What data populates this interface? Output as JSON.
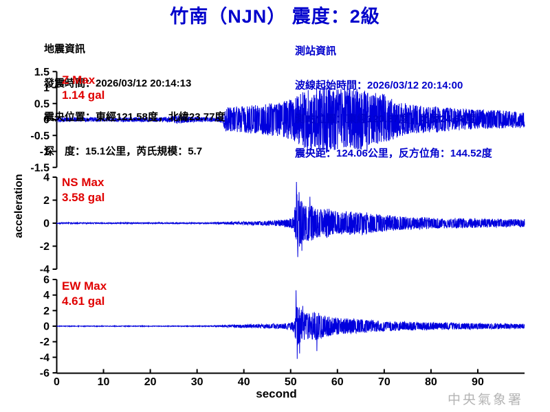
{
  "title": "竹南（NJN） 震度：2級",
  "earthquake_info": {
    "heading": "地震資訊",
    "origin_time_line": "發震時間：2026/03/12 20:14:13",
    "epicenter_line": "震央位置：東經121.58度，北緯23.77度",
    "depth_magnitude_line": "深　度：15.1公里，芮氏規模：5.7"
  },
  "station_info": {
    "heading": "測站資訊",
    "wave_start_line": "波線起始時間：2026/03/12 20:14:00",
    "station_location_line": "測站位置：東經120.87度，北緯24.68度",
    "distance_azimuth_line": "震央距：124.06公里，反方位角：144.52度"
  },
  "watermark": "中央氣象署",
  "colors": {
    "trace_blue": "#0000dd",
    "text_blue": "#0000cc",
    "label_red": "#e00000",
    "axis_black": "#000000",
    "watermark_gray": "#b4b4b4"
  },
  "chart_data": {
    "type": "line",
    "title": "竹南（NJN） 震度：2級",
    "xlabel": "second",
    "ylabel": "acceleration",
    "x_range": [
      0,
      100
    ],
    "x_ticks": [
      0,
      10,
      20,
      30,
      40,
      50,
      60,
      70,
      80,
      90
    ],
    "grid": false,
    "panels": [
      {
        "name": "Z",
        "max_label": "Z Max",
        "max_value_label": "1.14 gal",
        "max_gal": 1.14,
        "ylim": [
          -1.5,
          1.5
        ],
        "y_ticks": [
          1.5,
          1,
          0.5,
          0,
          -0.5,
          -1,
          -1.5
        ],
        "seed": 101,
        "envelope": [
          [
            0,
            0.07
          ],
          [
            23,
            0.07
          ],
          [
            26,
            0.14
          ],
          [
            29,
            0.08
          ],
          [
            34,
            0.07
          ],
          [
            35.5,
            0.12
          ],
          [
            36,
            0.38
          ],
          [
            40,
            0.42
          ],
          [
            44,
            0.48
          ],
          [
            48,
            0.55
          ],
          [
            51,
            0.7
          ],
          [
            53,
            0.9
          ],
          [
            56,
            1.0
          ],
          [
            58,
            1.05
          ],
          [
            61,
            0.95
          ],
          [
            64,
            1.0
          ],
          [
            67,
            0.85
          ],
          [
            70,
            0.8
          ],
          [
            73,
            0.55
          ],
          [
            77,
            0.45
          ],
          [
            82,
            0.4
          ],
          [
            87,
            0.33
          ],
          [
            92,
            0.3
          ],
          [
            100,
            0.25
          ]
        ],
        "peak_events": [
          [
            57.2,
            1.14
          ],
          [
            53.6,
            -1.12
          ],
          [
            62.1,
            1.05
          ],
          [
            66.3,
            -1.0
          ]
        ]
      },
      {
        "name": "NS",
        "max_label": "NS Max",
        "max_value_label": "3.58 gal",
        "max_gal": 3.58,
        "ylim": [
          -4,
          4
        ],
        "y_ticks": [
          4,
          2,
          0,
          -2,
          -4
        ],
        "seed": 202,
        "envelope": [
          [
            0,
            0.05
          ],
          [
            33,
            0.05
          ],
          [
            36,
            0.1
          ],
          [
            40,
            0.14
          ],
          [
            44,
            0.18
          ],
          [
            47,
            0.25
          ],
          [
            49.5,
            0.35
          ],
          [
            50.7,
            0.6
          ],
          [
            51.2,
            2.6
          ],
          [
            52,
            2.2
          ],
          [
            53,
            1.5
          ],
          [
            54.5,
            1.6
          ],
          [
            56,
            1.2
          ],
          [
            58,
            1.3
          ],
          [
            60,
            1.0
          ],
          [
            62,
            1.1
          ],
          [
            64,
            0.95
          ],
          [
            66,
            1.0
          ],
          [
            68,
            0.8
          ],
          [
            70,
            0.75
          ],
          [
            73,
            0.6
          ],
          [
            76,
            0.55
          ],
          [
            80,
            0.5
          ],
          [
            85,
            0.45
          ],
          [
            90,
            0.4
          ],
          [
            95,
            0.35
          ],
          [
            100,
            0.35
          ]
        ],
        "peak_events": [
          [
            51.25,
            3.58
          ],
          [
            51.5,
            -2.95
          ],
          [
            51.8,
            2.7
          ],
          [
            52.4,
            -2.4
          ],
          [
            54.1,
            2.3
          ]
        ]
      },
      {
        "name": "EW",
        "max_label": "EW Max",
        "max_value_label": "4.61 gal",
        "max_gal": 4.61,
        "ylim": [
          -6,
          6
        ],
        "y_ticks": [
          6,
          4,
          2,
          0,
          -2,
          -4,
          -6
        ],
        "seed": 303,
        "envelope": [
          [
            0,
            0.04
          ],
          [
            32,
            0.04
          ],
          [
            35,
            0.1
          ],
          [
            38,
            0.18
          ],
          [
            42,
            0.22
          ],
          [
            45,
            0.28
          ],
          [
            48,
            0.32
          ],
          [
            50,
            0.4
          ],
          [
            50.8,
            0.8
          ],
          [
            51.3,
            3.0
          ],
          [
            52,
            2.4
          ],
          [
            53,
            1.8
          ],
          [
            54,
            1.6
          ],
          [
            55.5,
            1.9
          ],
          [
            57,
            1.4
          ],
          [
            58.5,
            1.2
          ],
          [
            60,
            1.1
          ],
          [
            62,
            1.0
          ],
          [
            64,
            0.9
          ],
          [
            66,
            0.85
          ],
          [
            68,
            0.75
          ],
          [
            70,
            0.65
          ],
          [
            73,
            0.6
          ],
          [
            76,
            0.55
          ],
          [
            80,
            0.5
          ],
          [
            84,
            0.45
          ],
          [
            88,
            0.4
          ],
          [
            93,
            0.35
          ],
          [
            100,
            0.3
          ]
        ],
        "peak_events": [
          [
            51.15,
            4.61
          ],
          [
            51.4,
            -4.2
          ],
          [
            51.9,
            -3.5
          ],
          [
            52.6,
            2.6
          ],
          [
            55.6,
            -3.2
          ]
        ]
      }
    ]
  }
}
